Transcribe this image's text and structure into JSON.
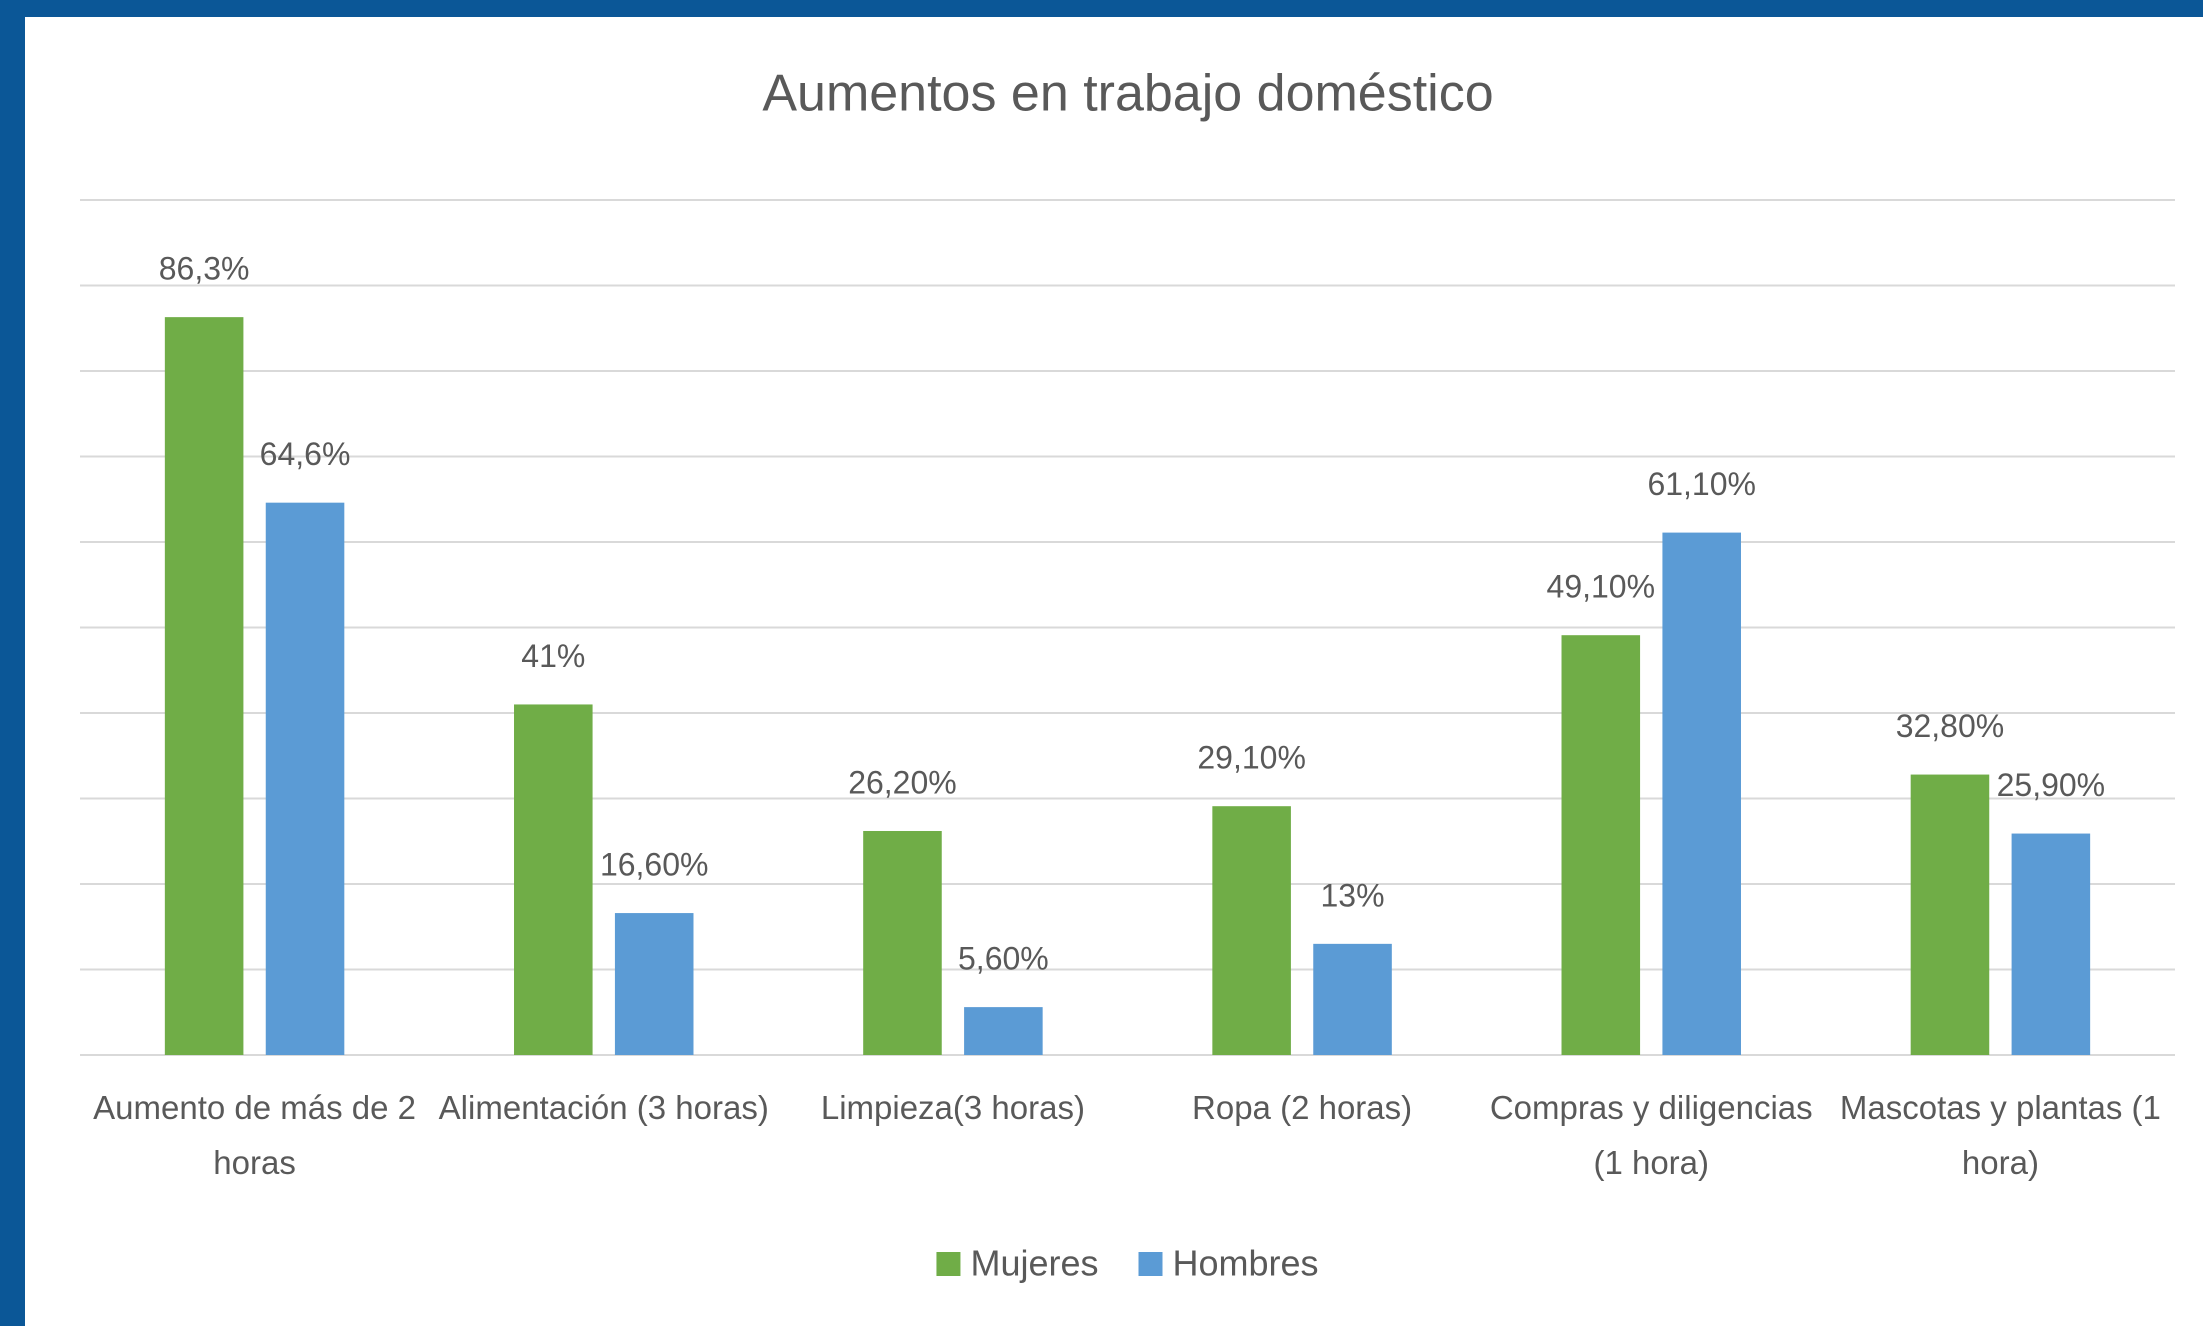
{
  "chart_data": {
    "type": "bar",
    "title": "Aumentos en trabajo doméstico",
    "categories": [
      "Aumento de más de 2 horas",
      "Alimentación (3 horas)",
      "Limpieza(3 horas)",
      "Ropa (2 horas)",
      "Compras y diligencias (1 hora)",
      "Mascotas y plantas (1 hora)"
    ],
    "series": [
      {
        "name": "Mujeres",
        "color": "#70ad47",
        "values": [
          86.3,
          41,
          26.2,
          29.1,
          49.1,
          32.8
        ],
        "value_labels": [
          "86,3%",
          "41%",
          "26,20%",
          "29,10%",
          "49,10%",
          "32,80%"
        ]
      },
      {
        "name": "Hombres",
        "color": "#5b9bd5",
        "values": [
          64.6,
          16.6,
          5.6,
          13,
          61.1,
          25.9
        ],
        "value_labels": [
          "64,6%",
          "16,60%",
          "5,60%",
          "13%",
          "61,10%",
          "25,90%"
        ]
      }
    ],
    "ylim": [
      0,
      100
    ],
    "yticks": [
      0,
      10,
      20,
      30,
      40,
      50,
      60,
      70,
      80,
      90,
      100
    ],
    "grid": true,
    "legend": "bottom"
  }
}
